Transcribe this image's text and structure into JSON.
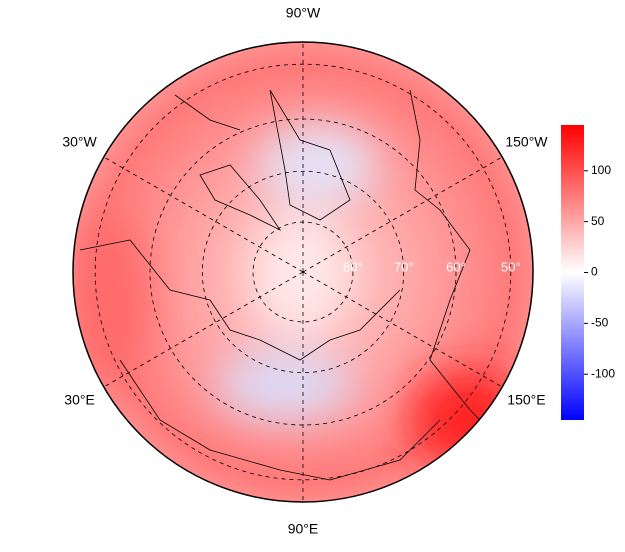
{
  "map": {
    "lon_labels": [
      {
        "value": -90,
        "label": "90°W"
      },
      {
        "value": -30,
        "label": "30°W"
      },
      {
        "value": -150,
        "label": "150°W"
      },
      {
        "value": 30,
        "label": "30°E"
      },
      {
        "value": 150,
        "label": "150°E"
      },
      {
        "value": 90,
        "label": "90°E"
      }
    ],
    "lat_labels": [
      {
        "value": 80,
        "label": "80°"
      },
      {
        "value": 70,
        "label": "70°"
      },
      {
        "value": 60,
        "label": "60°"
      },
      {
        "value": 50,
        "label": "50°"
      }
    ]
  },
  "colorbar": {
    "lim": [
      -145,
      145
    ],
    "ticks": [
      100,
      50,
      0,
      -50,
      -100
    ],
    "colors": [
      "#0000ff",
      "#ffffff",
      "#ff0000"
    ]
  }
}
